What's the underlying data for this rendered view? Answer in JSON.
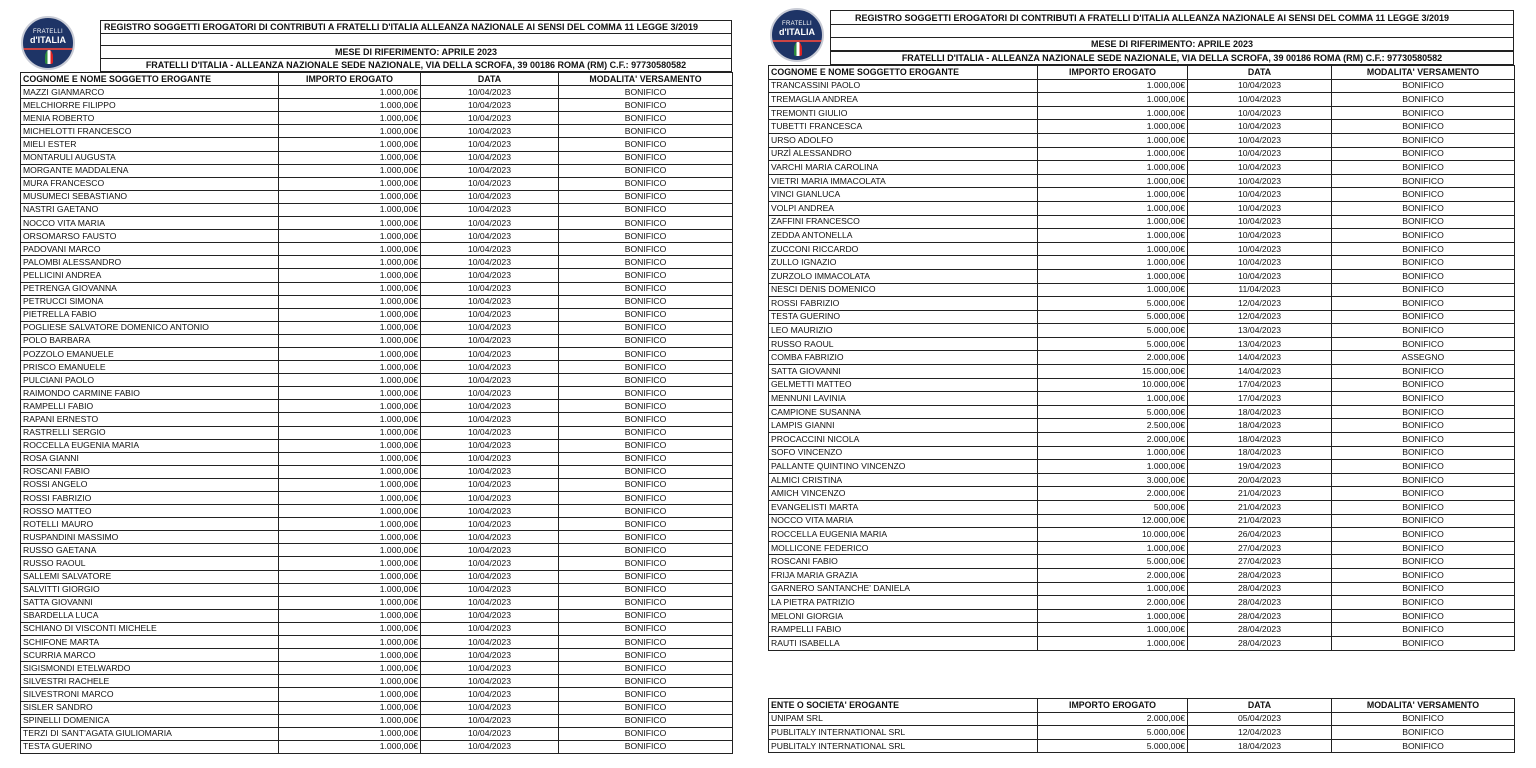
{
  "header": {
    "logo_text_top": "FRATELLI",
    "logo_text_bottom": "d'ITALIA",
    "title": "REGISTRO SOGGETTI EROGATORI DI CONTRIBUTI A FRATELLI D'ITALIA ALLEANZA NAZIONALE AI SENSI DEL COMMA 11 LEGGE 3/2019",
    "month": "MESE DI RIFERIMENTO: APRILE 2023",
    "address": "FRATELLI D'ITALIA - ALLEANZA NAZIONALE SEDE NAZIONALE, VIA DELLA SCROFA, 39 00186 ROMA (RM) C.F.: 97730580582"
  },
  "columns": [
    "COGNOME E NOME SOGGETTO EROGANTE",
    "IMPORTO EROGATO",
    "DATA",
    "MODALITA' VERSAMENTO"
  ],
  "company_columns": [
    "ENTE O SOCIETA' EROGANTE",
    "IMPORTO EROGATO",
    "DATA",
    "MODALITA' VERSAMENTO"
  ],
  "page1_rows": [
    [
      "MAZZI GIANMARCO",
      "1.000,00€",
      "10/04/2023",
      "BONIFICO"
    ],
    [
      "MELCHIORRE FILIPPO",
      "1.000,00€",
      "10/04/2023",
      "BONIFICO"
    ],
    [
      "MENIA ROBERTO",
      "1.000,00€",
      "10/04/2023",
      "BONIFICO"
    ],
    [
      "MICHELOTTI FRANCESCO",
      "1.000,00€",
      "10/04/2023",
      "BONIFICO"
    ],
    [
      "MIELI ESTER",
      "1.000,00€",
      "10/04/2023",
      "BONIFICO"
    ],
    [
      "MONTARULI AUGUSTA",
      "1.000,00€",
      "10/04/2023",
      "BONIFICO"
    ],
    [
      "MORGANTE MADDALENA",
      "1.000,00€",
      "10/04/2023",
      "BONIFICO"
    ],
    [
      "MURA FRANCESCO",
      "1.000,00€",
      "10/04/2023",
      "BONIFICO"
    ],
    [
      "MUSUMECI SEBASTIANO",
      "1.000,00€",
      "10/04/2023",
      "BONIFICO"
    ],
    [
      "NASTRI GAETANO",
      "1.000,00€",
      "10/04/2023",
      "BONIFICO"
    ],
    [
      "NOCCO VITA MARIA",
      "1.000,00€",
      "10/04/2023",
      "BONIFICO"
    ],
    [
      "ORSOMARSO FAUSTO",
      "1.000,00€",
      "10/04/2023",
      "BONIFICO"
    ],
    [
      "PADOVANI MARCO",
      "1.000,00€",
      "10/04/2023",
      "BONIFICO"
    ],
    [
      "PALOMBI ALESSANDRO",
      "1.000,00€",
      "10/04/2023",
      "BONIFICO"
    ],
    [
      "PELLICINI ANDREA",
      "1.000,00€",
      "10/04/2023",
      "BONIFICO"
    ],
    [
      "PETRENGA GIOVANNA",
      "1.000,00€",
      "10/04/2023",
      "BONIFICO"
    ],
    [
      "PETRUCCI SIMONA",
      "1.000,00€",
      "10/04/2023",
      "BONIFICO"
    ],
    [
      "PIETRELLA FABIO",
      "1.000,00€",
      "10/04/2023",
      "BONIFICO"
    ],
    [
      "POGLIESE SALVATORE DOMENICO ANTONIO",
      "1.000,00€",
      "10/04/2023",
      "BONIFICO"
    ],
    [
      "POLO BARBARA",
      "1.000,00€",
      "10/04/2023",
      "BONIFICO"
    ],
    [
      "POZZOLO EMANUELE",
      "1.000,00€",
      "10/04/2023",
      "BONIFICO"
    ],
    [
      "PRISCO EMANUELE",
      "1.000,00€",
      "10/04/2023",
      "BONIFICO"
    ],
    [
      "PULCIANI PAOLO",
      "1.000,00€",
      "10/04/2023",
      "BONIFICO"
    ],
    [
      "RAIMONDO CARMINE FABIO",
      "1.000,00€",
      "10/04/2023",
      "BONIFICO"
    ],
    [
      "RAMPELLI FABIO",
      "1.000,00€",
      "10/04/2023",
      "BONIFICO"
    ],
    [
      "RAPANI ERNESTO",
      "1.000,00€",
      "10/04/2023",
      "BONIFICO"
    ],
    [
      "RASTRELLI SERGIO",
      "1.000,00€",
      "10/04/2023",
      "BONIFICO"
    ],
    [
      "ROCCELLA EUGENIA MARIA",
      "1.000,00€",
      "10/04/2023",
      "BONIFICO"
    ],
    [
      "ROSA GIANNI",
      "1.000,00€",
      "10/04/2023",
      "BONIFICO"
    ],
    [
      "ROSCANI FABIO",
      "1.000,00€",
      "10/04/2023",
      "BONIFICO"
    ],
    [
      "ROSSI ANGELO",
      "1.000,00€",
      "10/04/2023",
      "BONIFICO"
    ],
    [
      "ROSSI FABRIZIO",
      "1.000,00€",
      "10/04/2023",
      "BONIFICO"
    ],
    [
      "ROSSO MATTEO",
      "1.000,00€",
      "10/04/2023",
      "BONIFICO"
    ],
    [
      "ROTELLI MAURO",
      "1.000,00€",
      "10/04/2023",
      "BONIFICO"
    ],
    [
      "RUSPANDINI MASSIMO",
      "1.000,00€",
      "10/04/2023",
      "BONIFICO"
    ],
    [
      "RUSSO GAETANA",
      "1.000,00€",
      "10/04/2023",
      "BONIFICO"
    ],
    [
      "RUSSO RAOUL",
      "1.000,00€",
      "10/04/2023",
      "BONIFICO"
    ],
    [
      "SALLEMI SALVATORE",
      "1.000,00€",
      "10/04/2023",
      "BONIFICO"
    ],
    [
      "SALVITTI GIORGIO",
      "1.000,00€",
      "10/04/2023",
      "BONIFICO"
    ],
    [
      "SATTA GIOVANNI",
      "1.000,00€",
      "10/04/2023",
      "BONIFICO"
    ],
    [
      "SBARDELLA LUCA",
      "1.000,00€",
      "10/04/2023",
      "BONIFICO"
    ],
    [
      "SCHIANO DI VISCONTI MICHELE",
      "1.000,00€",
      "10/04/2023",
      "BONIFICO"
    ],
    [
      "SCHIFONE MARTA",
      "1.000,00€",
      "10/04/2023",
      "BONIFICO"
    ],
    [
      "SCURRIA MARCO",
      "1.000,00€",
      "10/04/2023",
      "BONIFICO"
    ],
    [
      "SIGISMONDI ETELWARDO",
      "1.000,00€",
      "10/04/2023",
      "BONIFICO"
    ],
    [
      "SILVESTRI RACHELE",
      "1.000,00€",
      "10/04/2023",
      "BONIFICO"
    ],
    [
      "SILVESTRONI MARCO",
      "1.000,00€",
      "10/04/2023",
      "BONIFICO"
    ],
    [
      "SISLER SANDRO",
      "1.000,00€",
      "10/04/2023",
      "BONIFICO"
    ],
    [
      "SPINELLI DOMENICA",
      "1.000,00€",
      "10/04/2023",
      "BONIFICO"
    ],
    [
      "TERZI DI SANT'AGATA GIULIOMARIA",
      "1.000,00€",
      "10/04/2023",
      "BONIFICO"
    ],
    [
      "TESTA GUERINO",
      "1.000,00€",
      "10/04/2023",
      "BONIFICO"
    ]
  ],
  "page2_rows": [
    [
      "TRANCASSINI PAOLO",
      "1.000,00€",
      "10/04/2023",
      "BONIFICO"
    ],
    [
      "TREMAGLIA ANDREA",
      "1.000,00€",
      "10/04/2023",
      "BONIFICO"
    ],
    [
      "TREMONTI GIULIO",
      "1.000,00€",
      "10/04/2023",
      "BONIFICO"
    ],
    [
      "TUBETTI FRANCESCA",
      "1.000,00€",
      "10/04/2023",
      "BONIFICO"
    ],
    [
      "URSO ADOLFO",
      "1.000,00€",
      "10/04/2023",
      "BONIFICO"
    ],
    [
      "URZÌ ALESSANDRO",
      "1.000,00€",
      "10/04/2023",
      "BONIFICO"
    ],
    [
      "VARCHI MARIA CAROLINA",
      "1.000,00€",
      "10/04/2023",
      "BONIFICO"
    ],
    [
      "VIETRI MARIA IMMACOLATA",
      "1.000,00€",
      "10/04/2023",
      "BONIFICO"
    ],
    [
      "VINCI GIANLUCA",
      "1.000,00€",
      "10/04/2023",
      "BONIFICO"
    ],
    [
      "VOLPI ANDREA",
      "1.000,00€",
      "10/04/2023",
      "BONIFICO"
    ],
    [
      "ZAFFINI FRANCESCO",
      "1.000,00€",
      "10/04/2023",
      "BONIFICO"
    ],
    [
      "ZEDDA ANTONELLA",
      "1.000,00€",
      "10/04/2023",
      "BONIFICO"
    ],
    [
      "ZUCCONI RICCARDO",
      "1.000,00€",
      "10/04/2023",
      "BONIFICO"
    ],
    [
      "ZULLO IGNAZIO",
      "1.000,00€",
      "10/04/2023",
      "BONIFICO"
    ],
    [
      "ZURZOLO IMMACOLATA",
      "1.000,00€",
      "10/04/2023",
      "BONIFICO"
    ],
    [
      "NESCI DENIS DOMENICO",
      "1.000,00€",
      "11/04/2023",
      "BONIFICO"
    ],
    [
      "ROSSI FABRIZIO",
      "5.000,00€",
      "12/04/2023",
      "BONIFICO"
    ],
    [
      "TESTA GUERINO",
      "5.000,00€",
      "12/04/2023",
      "BONIFICO"
    ],
    [
      "LEO MAURIZIO",
      "5.000,00€",
      "13/04/2023",
      "BONIFICO"
    ],
    [
      "RUSSO RAOUL",
      "5.000,00€",
      "13/04/2023",
      "BONIFICO"
    ],
    [
      "COMBA FABRIZIO",
      "2.000,00€",
      "14/04/2023",
      "ASSEGNO"
    ],
    [
      "SATTA GIOVANNI",
      "15.000,00€",
      "14/04/2023",
      "BONIFICO"
    ],
    [
      "GELMETTI MATTEO",
      "10.000,00€",
      "17/04/2023",
      "BONIFICO"
    ],
    [
      "MENNUNI LAVINIA",
      "1.000,00€",
      "17/04/2023",
      "BONIFICO"
    ],
    [
      "CAMPIONE SUSANNA",
      "5.000,00€",
      "18/04/2023",
      "BONIFICO"
    ],
    [
      "LAMPIS GIANNI",
      "2.500,00€",
      "18/04/2023",
      "BONIFICO"
    ],
    [
      "PROCACCINI NICOLA",
      "2.000,00€",
      "18/04/2023",
      "BONIFICO"
    ],
    [
      "SOFO VINCENZO",
      "1.000,00€",
      "18/04/2023",
      "BONIFICO"
    ],
    [
      "PALLANTE QUINTINO VINCENZO",
      "1.000,00€",
      "19/04/2023",
      "BONIFICO"
    ],
    [
      "ALMICI CRISTINA",
      "3.000,00€",
      "20/04/2023",
      "BONIFICO"
    ],
    [
      "AMICH VINCENZO",
      "2.000,00€",
      "21/04/2023",
      "BONIFICO"
    ],
    [
      "EVANGELISTI MARTA",
      "500,00€",
      "21/04/2023",
      "BONIFICO"
    ],
    [
      "NOCCO VITA MARIA",
      "12.000,00€",
      "21/04/2023",
      "BONIFICO"
    ],
    [
      "ROCCELLA EUGENIA MARIA",
      "10.000,00€",
      "26/04/2023",
      "BONIFICO"
    ],
    [
      "MOLLICONE FEDERICO",
      "1.000,00€",
      "27/04/2023",
      "BONIFICO"
    ],
    [
      "ROSCANI FABIO",
      "5.000,00€",
      "27/04/2023",
      "BONIFICO"
    ],
    [
      "FRIJA MARIA GRAZIA",
      "2.000,00€",
      "28/04/2023",
      "BONIFICO"
    ],
    [
      "GARNERO SANTANCHE' DANIELA",
      "1.000,00€",
      "28/04/2023",
      "BONIFICO"
    ],
    [
      "LA PIETRA PATRIZIO",
      "2.000,00€",
      "28/04/2023",
      "BONIFICO"
    ],
    [
      "MELONI GIORGIA",
      "1.000,00€",
      "28/04/2023",
      "BONIFICO"
    ],
    [
      "RAMPELLI FABIO",
      "1.000,00€",
      "28/04/2023",
      "BONIFICO"
    ],
    [
      "RAUTI ISABELLA",
      "1.000,00€",
      "28/04/2023",
      "BONIFICO"
    ]
  ],
  "company_rows": [
    [
      "UNIPAM SRL",
      "2.000,00€",
      "05/04/2023",
      "BONIFICO"
    ],
    [
      "PUBLITALY INTERNATIONAL SRL",
      "5.000,00€",
      "12/04/2023",
      "BONIFICO"
    ],
    [
      "PUBLITALY INTERNATIONAL SRL",
      "5.000,00€",
      "18/04/2023",
      "BONIFICO"
    ]
  ]
}
